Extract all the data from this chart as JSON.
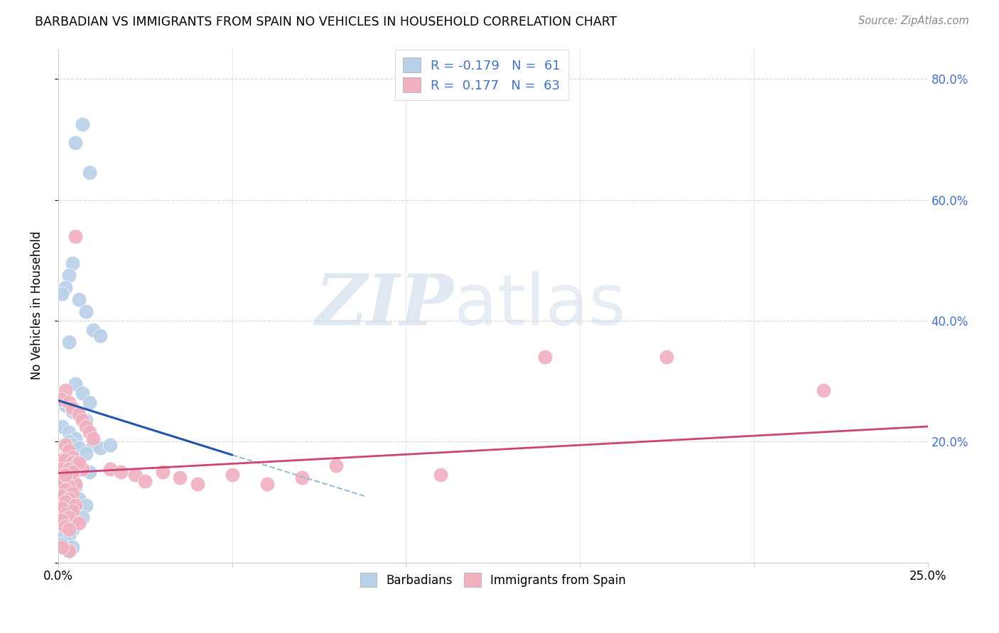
{
  "title": "BARBADIAN VS IMMIGRANTS FROM SPAIN NO VEHICLES IN HOUSEHOLD CORRELATION CHART",
  "source": "Source: ZipAtlas.com",
  "ylabel": "No Vehicles in Household",
  "watermark_zip": "ZIP",
  "watermark_atlas": "atlas",
  "legend_line1": "R = -0.179   N =  61",
  "legend_line2": "R =  0.177   N =  63",
  "blue_fill": "#b8d0e8",
  "blue_line": "#2255aa",
  "pink_fill": "#f0b0c0",
  "pink_line": "#cc4477",
  "dash_color": "#99bbcc",
  "text_blue": "#4472c4",
  "grid_color": "#cccccc",
  "xlim": [
    0.0,
    0.25
  ],
  "ylim": [
    0.0,
    0.85
  ],
  "figsize": [
    14.06,
    8.92
  ],
  "dpi": 100,
  "blue_x": [
    0.007,
    0.005,
    0.009,
    0.004,
    0.003,
    0.002,
    0.001,
    0.006,
    0.008,
    0.01,
    0.012,
    0.003,
    0.005,
    0.007,
    0.009,
    0.002,
    0.004,
    0.006,
    0.008,
    0.001,
    0.003,
    0.005,
    0.01,
    0.012,
    0.015,
    0.003,
    0.004,
    0.006,
    0.008,
    0.002,
    0.001,
    0.003,
    0.005,
    0.007,
    0.009,
    0.002,
    0.004,
    0.001,
    0.003,
    0.005,
    0.002,
    0.004,
    0.001,
    0.006,
    0.003,
    0.008,
    0.002,
    0.005,
    0.001,
    0.007,
    0.003,
    0.002,
    0.001,
    0.004,
    0.002,
    0.003,
    0.001,
    0.002,
    0.001,
    0.004,
    0.003
  ],
  "blue_y": [
    0.725,
    0.695,
    0.645,
    0.495,
    0.475,
    0.455,
    0.445,
    0.435,
    0.415,
    0.385,
    0.375,
    0.365,
    0.295,
    0.28,
    0.265,
    0.26,
    0.25,
    0.245,
    0.235,
    0.225,
    0.215,
    0.205,
    0.195,
    0.19,
    0.195,
    0.2,
    0.195,
    0.19,
    0.18,
    0.175,
    0.17,
    0.165,
    0.16,
    0.155,
    0.15,
    0.145,
    0.14,
    0.135,
    0.13,
    0.125,
    0.12,
    0.115,
    0.11,
    0.105,
    0.1,
    0.095,
    0.09,
    0.085,
    0.08,
    0.075,
    0.07,
    0.065,
    0.06,
    0.055,
    0.05,
    0.045,
    0.04,
    0.035,
    0.03,
    0.025,
    0.02
  ],
  "pink_x": [
    0.005,
    0.002,
    0.001,
    0.003,
    0.004,
    0.006,
    0.007,
    0.008,
    0.009,
    0.01,
    0.002,
    0.003,
    0.004,
    0.001,
    0.005,
    0.006,
    0.007,
    0.003,
    0.002,
    0.004,
    0.001,
    0.005,
    0.003,
    0.002,
    0.004,
    0.001,
    0.003,
    0.002,
    0.005,
    0.001,
    0.004,
    0.002,
    0.003,
    0.001,
    0.006,
    0.002,
    0.003,
    0.015,
    0.018,
    0.022,
    0.025,
    0.03,
    0.035,
    0.04,
    0.05,
    0.06,
    0.07,
    0.08,
    0.11,
    0.14,
    0.175,
    0.22,
    0.003,
    0.002,
    0.004,
    0.001,
    0.005,
    0.006,
    0.003,
    0.004,
    0.002,
    0.003,
    0.001
  ],
  "pink_y": [
    0.54,
    0.285,
    0.27,
    0.265,
    0.255,
    0.245,
    0.235,
    0.225,
    0.215,
    0.205,
    0.195,
    0.185,
    0.175,
    0.17,
    0.165,
    0.16,
    0.155,
    0.15,
    0.145,
    0.14,
    0.135,
    0.13,
    0.125,
    0.12,
    0.115,
    0.11,
    0.105,
    0.1,
    0.095,
    0.09,
    0.085,
    0.08,
    0.075,
    0.07,
    0.065,
    0.06,
    0.055,
    0.155,
    0.15,
    0.145,
    0.135,
    0.15,
    0.14,
    0.13,
    0.145,
    0.13,
    0.14,
    0.16,
    0.145,
    0.34,
    0.34,
    0.285,
    0.165,
    0.17,
    0.165,
    0.155,
    0.16,
    0.165,
    0.155,
    0.15,
    0.145,
    0.02,
    0.025
  ],
  "blue_trend_x": [
    0.0,
    0.05
  ],
  "blue_trend_y": [
    0.268,
    0.178
  ],
  "dash_trend_x": [
    0.05,
    0.088
  ],
  "dash_trend_y": [
    0.178,
    0.11
  ],
  "pink_trend_x": [
    0.0,
    0.25
  ],
  "pink_trend_y": [
    0.148,
    0.225
  ]
}
